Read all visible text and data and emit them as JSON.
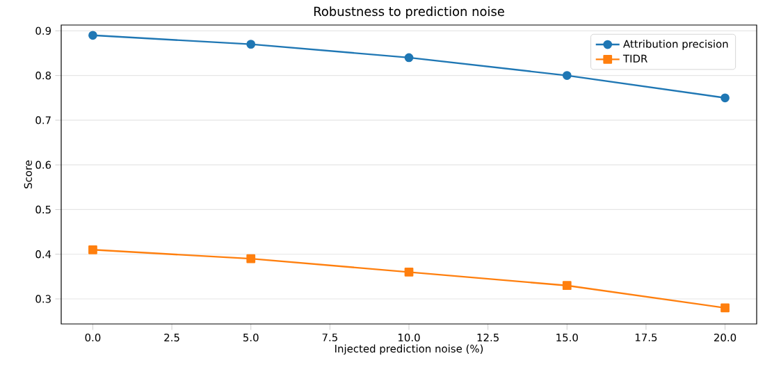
{
  "chart_data": {
    "type": "line",
    "title": "Robustness to prediction noise",
    "xlabel": "Injected prediction noise (%)",
    "ylabel": "Score",
    "x": [
      0,
      5,
      10,
      15,
      20
    ],
    "series": [
      {
        "name": "Attribution precision",
        "color": "#1f77b4",
        "marker": "circle",
        "values": [
          0.89,
          0.87,
          0.84,
          0.8,
          0.75
        ]
      },
      {
        "name": "TIDR",
        "color": "#ff7f0e",
        "marker": "square",
        "values": [
          0.41,
          0.39,
          0.36,
          0.33,
          0.28
        ]
      }
    ],
    "xlim": [
      -1,
      21
    ],
    "ylim": [
      0.244,
      0.913
    ],
    "xticks": [
      {
        "value": 0,
        "label": "0.0"
      },
      {
        "value": 2.5,
        "label": "2.5"
      },
      {
        "value": 5,
        "label": "5.0"
      },
      {
        "value": 7.5,
        "label": "7.5"
      },
      {
        "value": 10,
        "label": "10.0"
      },
      {
        "value": 12.5,
        "label": "12.5"
      },
      {
        "value": 15,
        "label": "15.0"
      },
      {
        "value": 17.5,
        "label": "17.5"
      },
      {
        "value": 20,
        "label": "20.0"
      }
    ],
    "yticks": [
      0.3,
      0.4,
      0.5,
      0.6,
      0.7,
      0.8,
      0.9
    ],
    "grid": "y",
    "legend": "top right",
    "line_style": "solid"
  }
}
